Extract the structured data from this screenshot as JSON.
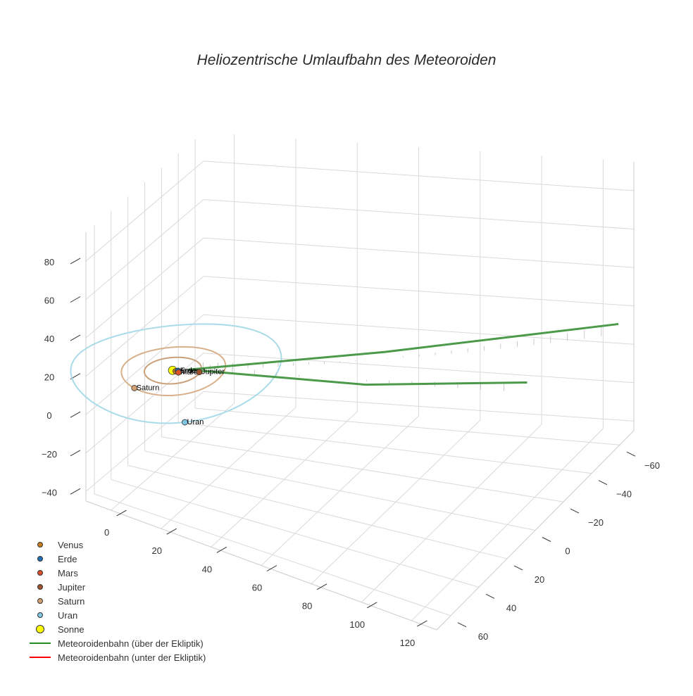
{
  "chart_data": {
    "type": "scatter3d",
    "title": "Heliozentrische Umlaufbahn des Meteoroiden",
    "axes": {
      "x": {
        "ticks": [
          "0",
          "20",
          "40",
          "60",
          "80",
          "100",
          "120"
        ],
        "range": [
          -10,
          130
        ]
      },
      "y": {
        "ticks": [
          "−60",
          "−40",
          "−20",
          "0",
          "20",
          "40",
          "60"
        ],
        "range": [
          -70,
          70
        ]
      },
      "z": {
        "ticks": [
          "−40",
          "−20",
          "0",
          "20",
          "40",
          "60",
          "80"
        ],
        "range": [
          -45,
          95
        ]
      }
    },
    "grid": true,
    "legend_position": "bottom-left",
    "legend": [
      {
        "label": "Venus",
        "kind": "marker",
        "color": "#c87b1e",
        "size": 8
      },
      {
        "label": "Erde",
        "kind": "marker",
        "color": "#1f6fb5",
        "size": 8
      },
      {
        "label": "Mars",
        "kind": "marker",
        "color": "#d9522b",
        "size": 8
      },
      {
        "label": "Jupiter",
        "kind": "marker",
        "color": "#a0522d",
        "size": 8
      },
      {
        "label": "Saturn",
        "kind": "marker",
        "color": "#d2a070",
        "size": 8
      },
      {
        "label": "Uran",
        "kind": "marker",
        "color": "#7ec8e3",
        "size": 8
      },
      {
        "label": "Sonne",
        "kind": "marker",
        "color": "#ffff00",
        "size": 12
      },
      {
        "label": "Meteoroidenbahn (über der Ekliptik)",
        "kind": "line",
        "color": "#228b22"
      },
      {
        "label": "Meteoroidenbahn (unter der Ekliptik)",
        "kind": "line",
        "color": "#ff0000"
      }
    ],
    "bodies": [
      {
        "name": "Sonne",
        "label": "",
        "x": 0,
        "y": 0,
        "z": 0
      },
      {
        "name": "Venus",
        "label": "Venus",
        "x": 0.7,
        "y": 0.1,
        "z": 0
      },
      {
        "name": "Erde",
        "label": "Erde",
        "x": 1.0,
        "y": -0.2,
        "z": 0
      },
      {
        "name": "Mars",
        "label": "Mars",
        "x": 1.4,
        "y": 0.3,
        "z": 0
      },
      {
        "name": "Jupiter",
        "label": "Jupiter",
        "x": 4.9,
        "y": -1.2,
        "z": 0
      },
      {
        "name": "Saturn",
        "label": "Saturn",
        "x": -3.0,
        "y": 9.0,
        "z": 0
      },
      {
        "name": "Uran",
        "label": "Uran",
        "x": 12.0,
        "y": 15.0,
        "z": 0
      }
    ],
    "orbits_radius_au": {
      "Jupiter": 5.2,
      "Saturn": 9.5,
      "Uran": 19.2
    },
    "meteoroid_track": {
      "above_ecliptic": [
        [
          5,
          -2,
          1
        ],
        [
          60,
          -40,
          5
        ],
        [
          125,
          -70,
          10
        ]
      ],
      "branch": [
        [
          5,
          -2,
          1
        ],
        [
          65,
          -10,
          6
        ],
        [
          115,
          -25,
          10
        ]
      ],
      "below_ecliptic": []
    }
  }
}
